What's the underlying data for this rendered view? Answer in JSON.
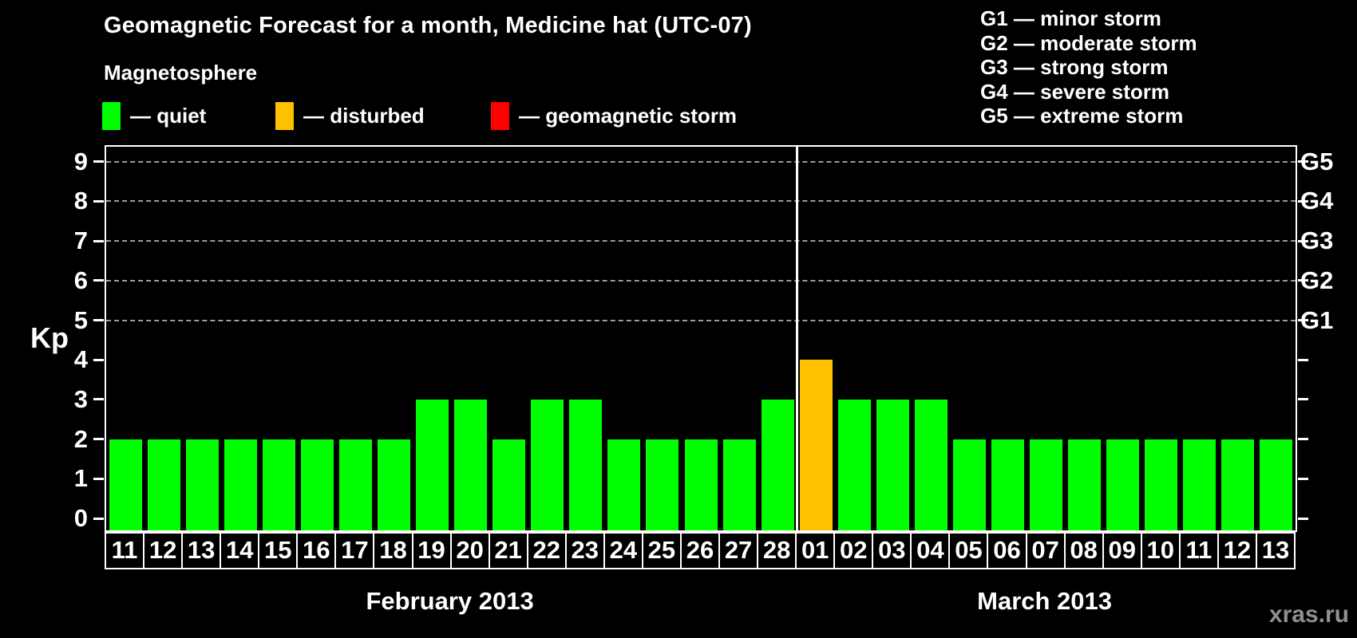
{
  "title": "Geomagnetic Forecast for a month, Medicine hat (UTC-07)",
  "magnetosphere_legend": {
    "heading": "Magnetosphere",
    "items": [
      {
        "name": "quiet",
        "label": "— quiet",
        "color": "#00ff00"
      },
      {
        "name": "disturbed",
        "label": "— disturbed",
        "color": "#ffc000"
      },
      {
        "name": "geomagnetic-storm",
        "label": "— geomagnetic storm",
        "color": "#ff0000"
      }
    ]
  },
  "g_scale_legend": {
    "items": [
      {
        "label": "G1 — minor storm"
      },
      {
        "label": "G2 — moderate storm"
      },
      {
        "label": "G3 — strong storm"
      },
      {
        "label": "G4 — severe storm"
      },
      {
        "label": "G5 — extreme storm"
      }
    ]
  },
  "watermark": "xras.ru",
  "chart_data": {
    "type": "bar",
    "title": "Geomagnetic Forecast for a month, Medicine hat (UTC-07)",
    "ylabel_left": "Kp",
    "ylim": [
      0,
      9
    ],
    "left_ticks": [
      0,
      1,
      2,
      3,
      4,
      5,
      6,
      7,
      8,
      9
    ],
    "right_tick_labels": [
      {
        "kp": 5,
        "label": "G1"
      },
      {
        "kp": 6,
        "label": "G2"
      },
      {
        "kp": 7,
        "label": "G3"
      },
      {
        "kp": 8,
        "label": "G4"
      },
      {
        "kp": 9,
        "label": "G5"
      }
    ],
    "gridlines_kp": [
      5,
      6,
      7,
      8,
      9
    ],
    "grid": "dashed",
    "status_colors": {
      "quiet": "#00ff00",
      "disturbed": "#ffc000",
      "storm": "#ff0000"
    },
    "months": [
      {
        "label": "February 2013",
        "days": [
          {
            "date": "11",
            "kp": 2,
            "status": "quiet"
          },
          {
            "date": "12",
            "kp": 2,
            "status": "quiet"
          },
          {
            "date": "13",
            "kp": 2,
            "status": "quiet"
          },
          {
            "date": "14",
            "kp": 2,
            "status": "quiet"
          },
          {
            "date": "15",
            "kp": 2,
            "status": "quiet"
          },
          {
            "date": "16",
            "kp": 2,
            "status": "quiet"
          },
          {
            "date": "17",
            "kp": 2,
            "status": "quiet"
          },
          {
            "date": "18",
            "kp": 2,
            "status": "quiet"
          },
          {
            "date": "19",
            "kp": 3,
            "status": "quiet"
          },
          {
            "date": "20",
            "kp": 3,
            "status": "quiet"
          },
          {
            "date": "21",
            "kp": 2,
            "status": "quiet"
          },
          {
            "date": "22",
            "kp": 3,
            "status": "quiet"
          },
          {
            "date": "23",
            "kp": 3,
            "status": "quiet"
          },
          {
            "date": "24",
            "kp": 2,
            "status": "quiet"
          },
          {
            "date": "25",
            "kp": 2,
            "status": "quiet"
          },
          {
            "date": "26",
            "kp": 2,
            "status": "quiet"
          },
          {
            "date": "27",
            "kp": 2,
            "status": "quiet"
          },
          {
            "date": "28",
            "kp": 3,
            "status": "quiet"
          }
        ]
      },
      {
        "label": "March 2013",
        "days": [
          {
            "date": "01",
            "kp": 4,
            "status": "disturbed"
          },
          {
            "date": "02",
            "kp": 3,
            "status": "quiet"
          },
          {
            "date": "03",
            "kp": 3,
            "status": "quiet"
          },
          {
            "date": "04",
            "kp": 3,
            "status": "quiet"
          },
          {
            "date": "05",
            "kp": 2,
            "status": "quiet"
          },
          {
            "date": "06",
            "kp": 2,
            "status": "quiet"
          },
          {
            "date": "07",
            "kp": 2,
            "status": "quiet"
          },
          {
            "date": "08",
            "kp": 2,
            "status": "quiet"
          },
          {
            "date": "09",
            "kp": 2,
            "status": "quiet"
          },
          {
            "date": "10",
            "kp": 2,
            "status": "quiet"
          },
          {
            "date": "11",
            "kp": 2,
            "status": "quiet"
          },
          {
            "date": "12",
            "kp": 2,
            "status": "quiet"
          },
          {
            "date": "13",
            "kp": 2,
            "status": "quiet"
          }
        ]
      }
    ]
  }
}
